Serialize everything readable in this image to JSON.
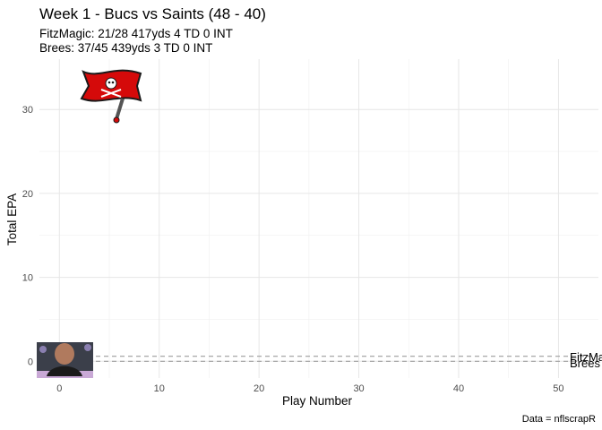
{
  "chart_data": {
    "type": "line",
    "title": "Week 1 - Bucs vs Saints (48 - 40)",
    "subtitle_lines": [
      "FitzMagic: 21/28 417yds 4 TD 0 INT",
      "Brees: 37/45 439yds 3 TD 0 INT"
    ],
    "xlabel": "Play Number",
    "ylabel": "Total EPA",
    "caption": "Data = nflscrapR",
    "xlim": [
      -2,
      54
    ],
    "ylim": [
      -2,
      36
    ],
    "x_ticks": [
      0,
      10,
      20,
      30,
      40,
      50
    ],
    "y_ticks": [
      0,
      10,
      20,
      30
    ],
    "grid": true,
    "series": [
      {
        "name": "FitzMagic",
        "label_text": "FitzMagic",
        "style": "dashed",
        "color": "#9e9e9e",
        "x": [
          -2,
          54
        ],
        "y": [
          0.6,
          0.6
        ]
      },
      {
        "name": "Brees",
        "label_text": "Brees",
        "style": "dashed",
        "color": "#9e9e9e",
        "x": [
          -2,
          54
        ],
        "y": [
          0.0,
          0.0
        ]
      }
    ],
    "images": [
      {
        "icon": "buccaneers-flag-logo",
        "x": 5.5,
        "y": 32.5
      },
      {
        "icon": "quarterback-headshot",
        "x": 1.0,
        "y": 0.2
      }
    ]
  }
}
